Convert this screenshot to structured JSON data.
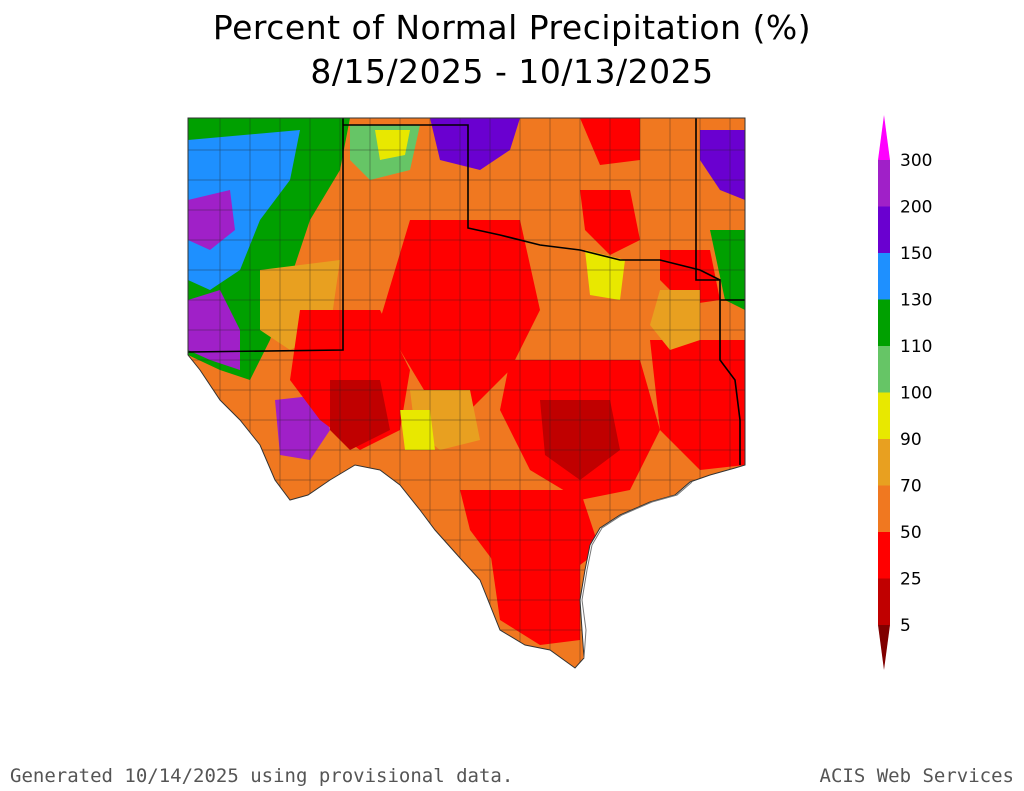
{
  "title": "Percent of Normal Precipitation (%)",
  "subtitle": "8/15/2025 - 10/13/2025",
  "legend": {
    "labels": [
      "300",
      "200",
      "150",
      "130",
      "110",
      "100",
      "90",
      "70",
      "50",
      "25",
      "5"
    ],
    "bands": [
      {
        "from": 200,
        "to": 300,
        "color": "#a020c8"
      },
      {
        "from": 150,
        "to": 200,
        "color": "#6a00d0"
      },
      {
        "from": 130,
        "to": 150,
        "color": "#1e90ff"
      },
      {
        "from": 110,
        "to": 130,
        "color": "#00a000"
      },
      {
        "from": 100,
        "to": 110,
        "color": "#66c566"
      },
      {
        "from": 90,
        "to": 100,
        "color": "#e8e800"
      },
      {
        "from": 70,
        "to": 90,
        "color": "#e8a020"
      },
      {
        "from": 50,
        "to": 70,
        "color": "#f07820"
      },
      {
        "from": 25,
        "to": 50,
        "color": "#ff0000"
      },
      {
        "from": 5,
        "to": 25,
        "color": "#c00000"
      }
    ],
    "top_color": "#ff00ff",
    "bottom_color": "#800000"
  },
  "footer": {
    "left": "Generated 10/14/2025  using provisional data.",
    "right": "ACIS Web Services"
  }
}
